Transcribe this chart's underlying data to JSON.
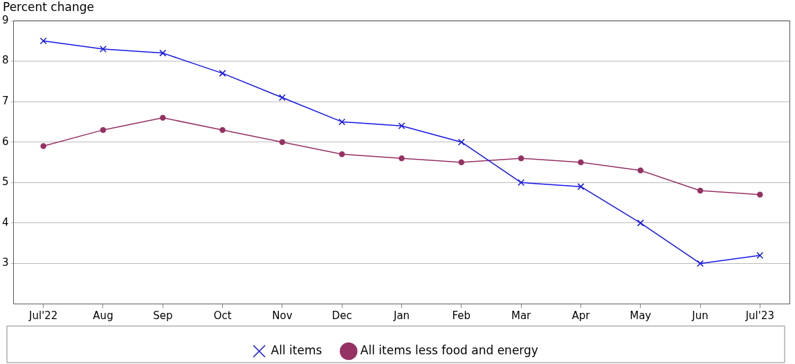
{
  "chart_data": {
    "type": "line",
    "ylabel": "Percent change",
    "categories": [
      "Jul'22",
      "Aug",
      "Sep",
      "Oct",
      "Nov",
      "Dec",
      "Jan",
      "Feb",
      "Mar",
      "Apr",
      "May",
      "Jun",
      "Jul'23"
    ],
    "series": [
      {
        "name": "All items",
        "color": "#1515e6",
        "marker": "cross",
        "values": [
          8.5,
          8.3,
          8.2,
          7.7,
          7.1,
          6.5,
          6.4,
          6.0,
          5.0,
          4.9,
          4.0,
          3.0,
          3.2
        ]
      },
      {
        "name": "All items less food and energy",
        "color": "#953163",
        "marker": "circle",
        "values": [
          5.9,
          6.3,
          6.6,
          6.3,
          6.0,
          5.7,
          5.6,
          5.5,
          5.6,
          5.5,
          5.3,
          4.8,
          4.7
        ]
      }
    ],
    "ylim": [
      2,
      9
    ],
    "yticks": [
      3,
      4,
      5,
      6,
      7,
      8,
      9
    ],
    "grid": "y",
    "legend": "bottom",
    "line_style": "solid"
  }
}
